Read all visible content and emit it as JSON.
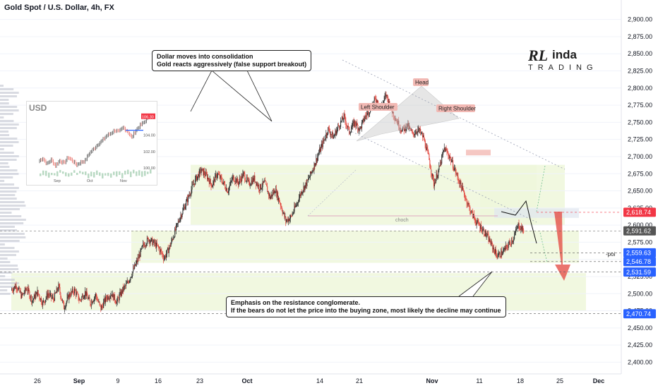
{
  "header": {
    "title": "Gold Spot / U.S. Dollar, 4h, FX"
  },
  "callouts": {
    "top": [
      "Dollar moves into consolidation",
      "Gold reacts aggressively (false support breakout)"
    ],
    "bottom": [
      "Emphasis on the resistance conglomerate.",
      "If the bears do not let the price into the buying zone, most likely the decline may continue"
    ]
  },
  "pattern_labels": {
    "left": "Left Shoulder",
    "head": "Head",
    "right": "Right Shoulder",
    "choch": "choch",
    "poi": "-poi"
  },
  "brand": {
    "mark": "RL",
    "word1": "inda",
    "word2": "TRADING",
    "color": "#1e1e1e"
  },
  "inset": {
    "title": "USD",
    "ticks": [
      "106.30",
      "104.00",
      "102.00",
      "100.00"
    ],
    "x_ticks": [
      "Sep",
      "Oct",
      "Nov"
    ],
    "series_color": "#1f3a5f"
  },
  "colors": {
    "up": "#2b2b2b",
    "down": "#e3453d",
    "zone": "#eef7da",
    "red_arrow": "#e3453d",
    "tag_red": "#f23645",
    "tag_blue": "#2962ff",
    "tag_grey": "#555555"
  },
  "chart_data": {
    "type": "candlestick",
    "title": "Gold Spot / U.S. Dollar, 4h, FX",
    "ylim": [
      2375,
      2912
    ],
    "y_ticks": [
      2400,
      2425,
      2450,
      2475,
      2500,
      2525,
      2550,
      2575,
      2600,
      2625,
      2650,
      2675,
      2700,
      2725,
      2750,
      2775,
      2800,
      2825,
      2850,
      2875,
      2900
    ],
    "y_tick_labels": [
      "2,400.00",
      "2,425.00",
      "2,450.00",
      "2,475.00",
      "2,500.00",
      "2,525.00",
      "2,550.00",
      "2,575.00",
      "2,600.00",
      "2,625.00",
      "2,650.00",
      "2,675.00",
      "2,700.00",
      "2,725.00",
      "2,750.00",
      "2,775.00",
      "2,800.00",
      "2,825.00",
      "2,850.00",
      "2,875.00",
      "2,900.00"
    ],
    "x_ticks": [
      "26",
      "Sep",
      "9",
      "16",
      "23",
      "Oct",
      "14",
      "21",
      "Nov",
      "11",
      "18",
      "25",
      "Dec"
    ],
    "price_tags": [
      {
        "label": "2,618.74",
        "value": 2618.74,
        "color": "#f23645"
      },
      {
        "label": "2,591.62",
        "value": 2591.62,
        "color": "#555555"
      },
      {
        "label": "2,559.63",
        "value": 2559.63,
        "color": "#2962ff"
      },
      {
        "label": "2,546.78",
        "value": 2546.78,
        "color": "#2962ff"
      },
      {
        "label": "2,531.59",
        "value": 2531.59,
        "color": "#2962ff"
      },
      {
        "label": "2,470.74",
        "value": 2470.74,
        "color": "#2962ff"
      }
    ],
    "path": [
      2505,
      2512,
      2496,
      2508,
      2490,
      2502,
      2486,
      2500,
      2492,
      2510,
      2480,
      2498,
      2505,
      2490,
      2502,
      2486,
      2498,
      2478,
      2494,
      2500,
      2488,
      2504,
      2515,
      2532,
      2550,
      2570,
      2580,
      2574,
      2566,
      2552,
      2568,
      2590,
      2612,
      2630,
      2650,
      2668,
      2680,
      2672,
      2658,
      2675,
      2664,
      2650,
      2670,
      2662,
      2674,
      2660,
      2668,
      2654,
      2662,
      2640,
      2652,
      2630,
      2606,
      2612,
      2630,
      2650,
      2662,
      2680,
      2700,
      2720,
      2740,
      2728,
      2745,
      2758,
      2736,
      2750,
      2740,
      2758,
      2770,
      2785,
      2772,
      2790,
      2768,
      2752,
      2738,
      2746,
      2732,
      2740,
      2728,
      2700,
      2660,
      2682,
      2712,
      2700,
      2680,
      2660,
      2640,
      2620,
      2605,
      2596,
      2585,
      2570,
      2555,
      2560,
      2570,
      2580,
      2600,
      2592
    ]
  }
}
